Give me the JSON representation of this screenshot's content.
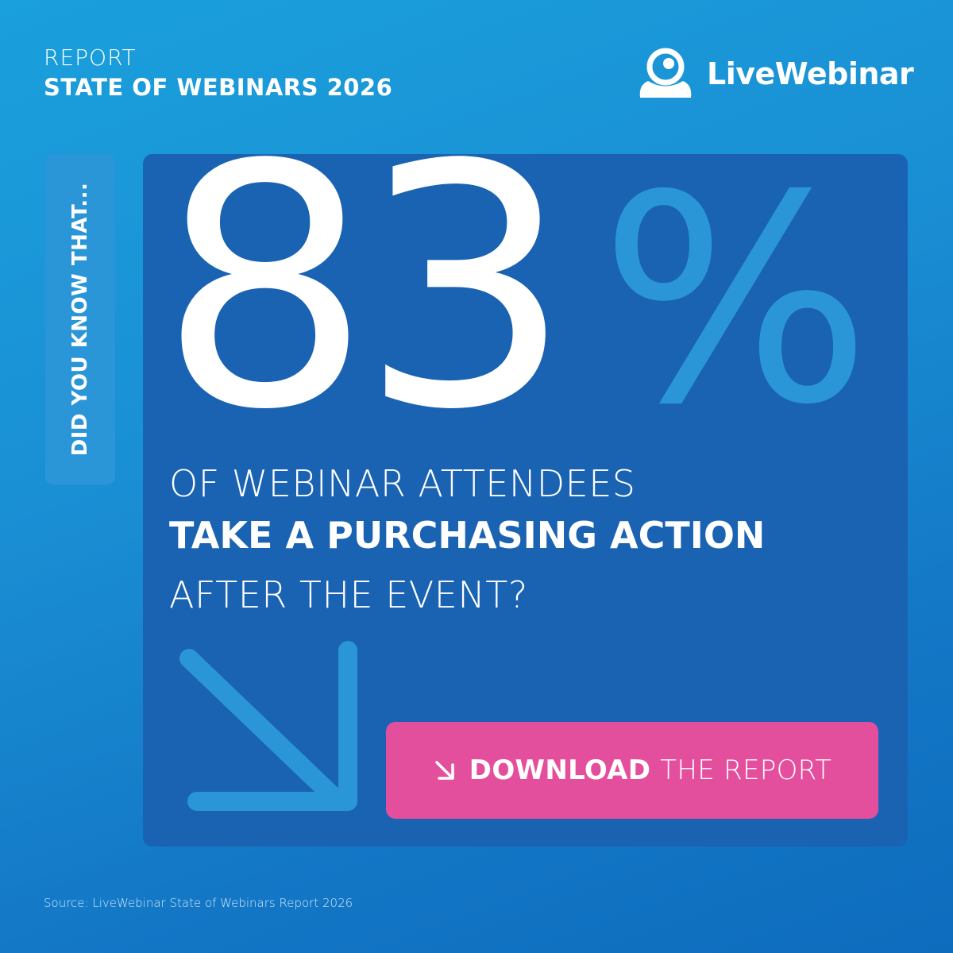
{
  "header": {
    "label": "REPORT",
    "title": "STATE OF WEBINARS 2026"
  },
  "brand": {
    "name": "LiveWebinar",
    "logo_icon": "livewebinar-logo-icon"
  },
  "side_tab": {
    "text": "DID YOU KNOW THAT..."
  },
  "stat": {
    "number": "83",
    "percent_sign": "%",
    "line1": "OF WEBINAR ATTENDEES",
    "line2": "TAKE A PURCHASING ACTION",
    "line3": "AFTER THE EVENT?"
  },
  "cta": {
    "icon": "arrow-down-right-icon",
    "strong_label": "DOWNLOAD",
    "rest_label": "THE REPORT"
  },
  "footer": {
    "source": "Source: LiveWebinar State of Webinars Report 2026"
  },
  "colors": {
    "background_top": "#1aa0dc",
    "background_bottom": "#0e6cbd",
    "card": "#1a63b2",
    "accent_light_blue": "#2a96d8",
    "cta_pink": "#e44f9d"
  }
}
